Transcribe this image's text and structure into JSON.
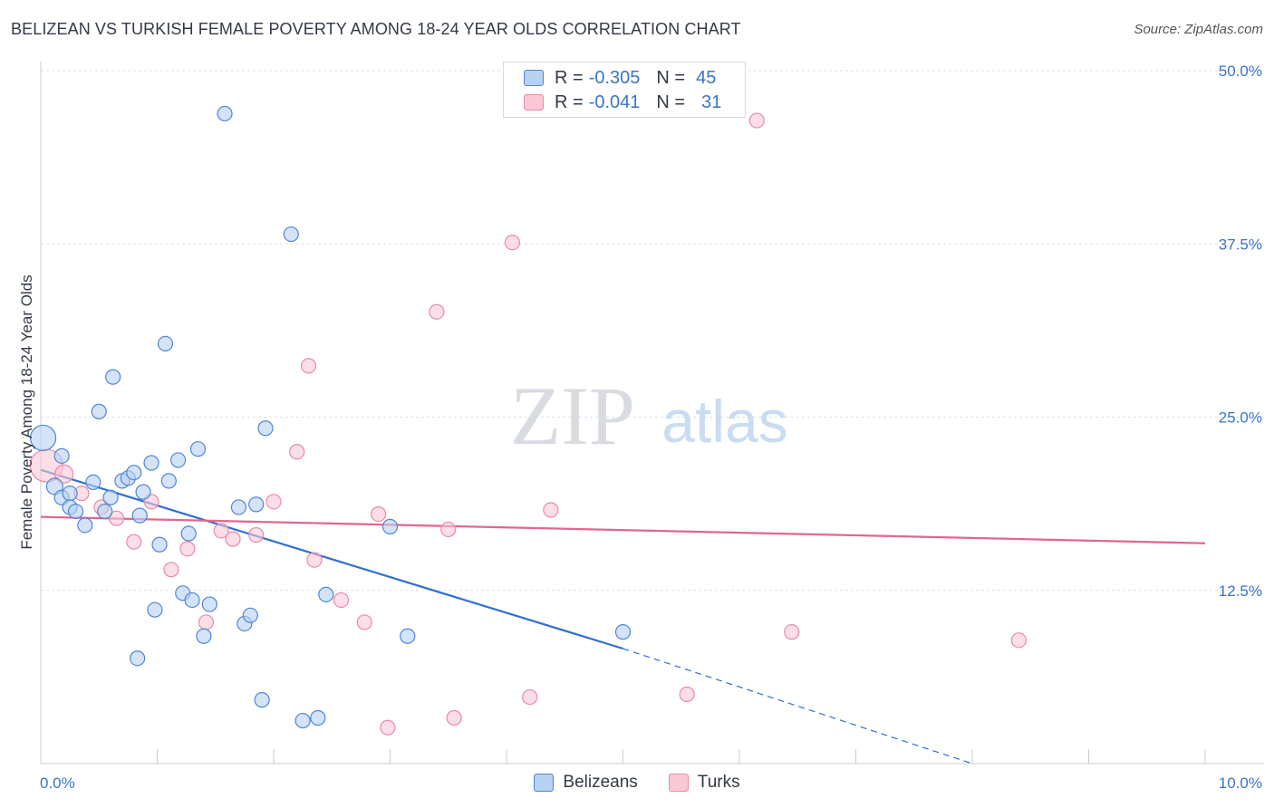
{
  "title": "BELIZEAN VS TURKISH FEMALE POVERTY AMONG 18-24 YEAR OLDS CORRELATION CHART",
  "source": "Source: ZipAtlas.com",
  "watermark": {
    "zip": "ZIP",
    "atlas": "atlas"
  },
  "legend": {
    "rows": [
      {
        "r_label": "R =",
        "r_value": "-0.305",
        "n_label": "N =",
        "n_value": "45"
      },
      {
        "r_label": "R =",
        "r_value": "-0.041",
        "n_label": "N =",
        "n_value": "31"
      }
    ]
  },
  "colors": {
    "blue_fill": "#b8d1f1",
    "blue_stroke": "#4f86d8",
    "blue_line": "#2f6fd1",
    "pink_fill": "#f8c8d6",
    "pink_stroke": "#e88aa6",
    "pink_line": "#e0678f",
    "tick_text": "#3b74c7",
    "grid": "#dde1e6"
  },
  "chart_data": {
    "type": "scatter",
    "title": "BELIZEAN VS TURKISH FEMALE POVERTY AMONG 18-24 YEAR OLDS CORRELATION CHART",
    "xlabel": "",
    "ylabel": "Female Poverty Among 18-24 Year Olds",
    "xlim": [
      0,
      10
    ],
    "ylim": [
      0,
      50
    ],
    "x_tick_labels": [
      "0.0%",
      "10.0%"
    ],
    "y_ticks": [
      12.5,
      25.0,
      37.5,
      50.0
    ],
    "y_tick_labels": [
      "12.5%",
      "25.0%",
      "37.5%",
      "50.0%"
    ],
    "grid": true,
    "legend_position": "top-center",
    "series": [
      {
        "name": "Belizeans",
        "r": -0.305,
        "n": 45,
        "trend": {
          "x0": 0.0,
          "y0": 21.2,
          "x1": 5.0,
          "y1": 8.3,
          "dashed_to_x": 8.0,
          "dashed_to_y": 0.0
        },
        "points": [
          [
            0.02,
            23.5,
            14
          ],
          [
            0.12,
            20.0,
            9
          ],
          [
            0.18,
            22.2,
            8
          ],
          [
            0.18,
            19.2,
            8
          ],
          [
            0.25,
            19.5,
            8
          ],
          [
            0.25,
            18.5,
            8
          ],
          [
            0.3,
            18.2,
            8
          ],
          [
            0.38,
            17.2,
            8
          ],
          [
            0.45,
            20.3,
            8
          ],
          [
            0.5,
            25.4,
            8
          ],
          [
            0.55,
            18.2,
            8
          ],
          [
            0.6,
            19.2,
            8
          ],
          [
            0.62,
            27.9,
            8
          ],
          [
            0.7,
            20.4,
            8
          ],
          [
            0.75,
            20.6,
            8
          ],
          [
            0.8,
            21.0,
            8
          ],
          [
            0.88,
            19.6,
            8
          ],
          [
            0.95,
            21.7,
            8
          ],
          [
            0.98,
            11.1,
            8
          ],
          [
            1.02,
            15.8,
            8
          ],
          [
            1.07,
            30.3,
            8
          ],
          [
            1.1,
            20.4,
            8
          ],
          [
            1.18,
            21.9,
            8
          ],
          [
            1.22,
            12.3,
            8
          ],
          [
            1.27,
            16.6,
            8
          ],
          [
            1.3,
            11.8,
            8
          ],
          [
            1.35,
            22.7,
            8
          ],
          [
            1.4,
            9.2,
            8
          ],
          [
            1.45,
            11.5,
            8
          ],
          [
            1.58,
            46.9,
            8
          ],
          [
            1.7,
            18.5,
            8
          ],
          [
            1.75,
            10.1,
            8
          ],
          [
            1.8,
            10.7,
            8
          ],
          [
            1.85,
            18.7,
            8
          ],
          [
            1.9,
            4.6,
            8
          ],
          [
            1.93,
            24.2,
            8
          ],
          [
            2.15,
            38.2,
            8
          ],
          [
            2.25,
            3.1,
            8
          ],
          [
            2.38,
            3.3,
            8
          ],
          [
            2.45,
            12.2,
            8
          ],
          [
            3.0,
            17.1,
            8
          ],
          [
            3.15,
            9.2,
            8
          ],
          [
            5.0,
            9.5,
            8
          ],
          [
            0.83,
            7.6,
            8
          ],
          [
            0.85,
            17.9,
            8
          ]
        ]
      },
      {
        "name": "Turks",
        "r": -0.041,
        "n": 31,
        "trend": {
          "x0": 0.0,
          "y0": 17.8,
          "x1": 10.0,
          "y1": 15.9
        },
        "points": [
          [
            0.05,
            21.5,
            18
          ],
          [
            0.2,
            20.9,
            10
          ],
          [
            0.35,
            19.5,
            8
          ],
          [
            0.52,
            18.5,
            8
          ],
          [
            0.65,
            17.7,
            8
          ],
          [
            0.8,
            16.0,
            8
          ],
          [
            0.95,
            18.9,
            8
          ],
          [
            1.12,
            14.0,
            8
          ],
          [
            1.26,
            15.5,
            8
          ],
          [
            1.42,
            10.2,
            8
          ],
          [
            1.55,
            16.8,
            8
          ],
          [
            1.65,
            16.2,
            8
          ],
          [
            1.85,
            16.5,
            8
          ],
          [
            2.0,
            18.9,
            8
          ],
          [
            2.2,
            22.5,
            8
          ],
          [
            2.3,
            28.7,
            8
          ],
          [
            2.35,
            14.7,
            8
          ],
          [
            2.58,
            11.8,
            8
          ],
          [
            2.78,
            10.2,
            8
          ],
          [
            2.9,
            18.0,
            8
          ],
          [
            2.98,
            2.6,
            8
          ],
          [
            3.4,
            32.6,
            8
          ],
          [
            3.5,
            16.9,
            8
          ],
          [
            3.55,
            3.3,
            8
          ],
          [
            4.05,
            37.6,
            8
          ],
          [
            4.2,
            4.8,
            8
          ],
          [
            4.38,
            18.3,
            8
          ],
          [
            5.55,
            5.0,
            8
          ],
          [
            6.15,
            46.4,
            8
          ],
          [
            6.45,
            9.5,
            8
          ],
          [
            8.4,
            8.9,
            8
          ]
        ]
      }
    ]
  }
}
